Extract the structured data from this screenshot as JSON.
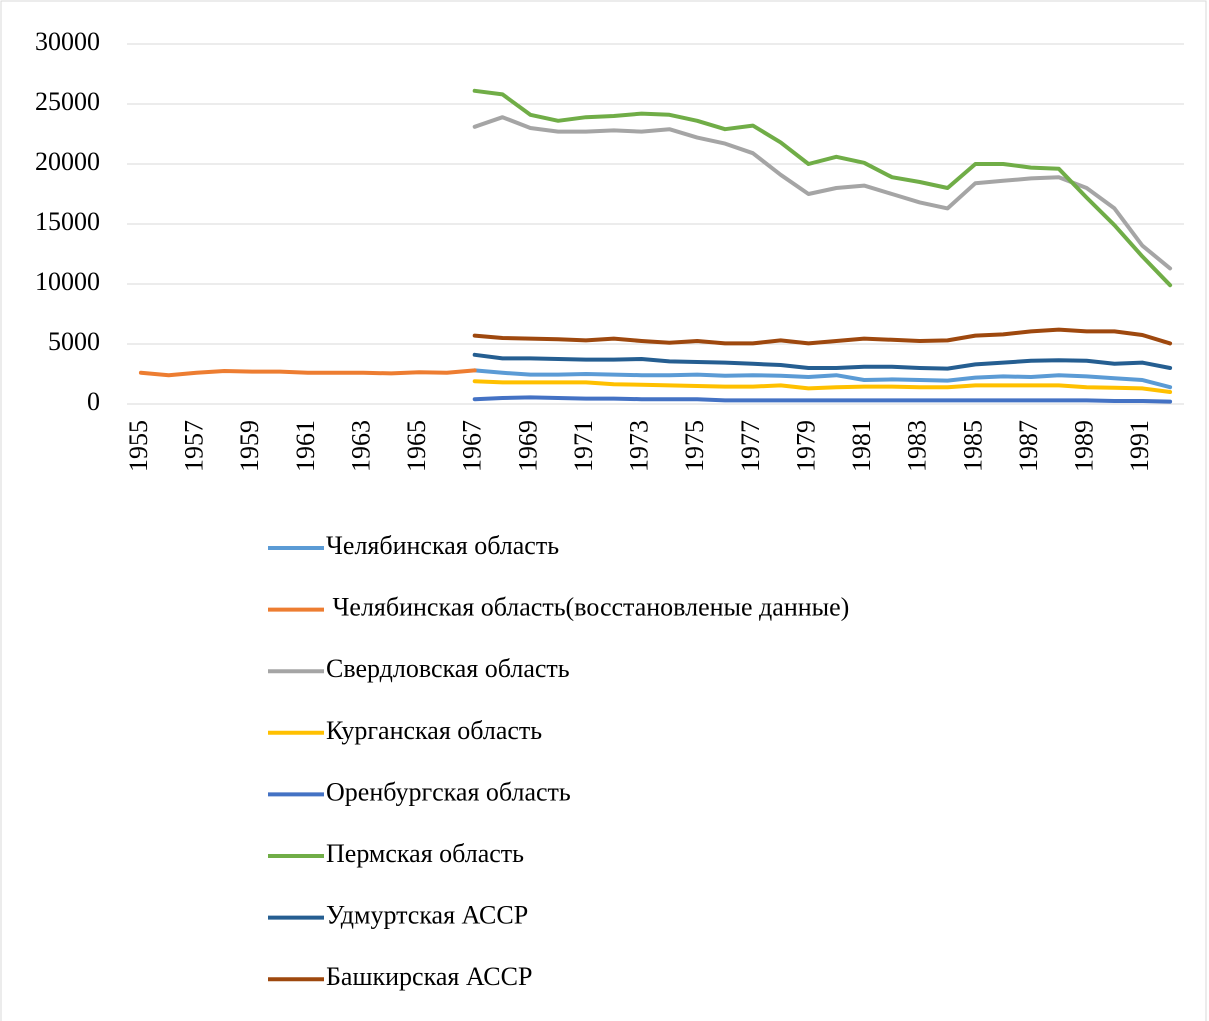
{
  "chart_data": {
    "type": "line",
    "categories": [
      "1955",
      null,
      "1957",
      null,
      "1959",
      null,
      "1961",
      null,
      "1963",
      null,
      "1965",
      null,
      "1967",
      null,
      "1969",
      null,
      "1971",
      null,
      "1973",
      null,
      "1975",
      null,
      "1977",
      null,
      "1979",
      null,
      "1981",
      null,
      "1983",
      null,
      "1985",
      null,
      "1987",
      null,
      "1989",
      null,
      "1991",
      null
    ],
    "series": [
      {
        "name": "Челябинская область",
        "color": "#5b9bd5",
        "values": [
          null,
          null,
          null,
          null,
          null,
          null,
          null,
          null,
          null,
          null,
          null,
          null,
          2800,
          2600,
          2450,
          2450,
          2500,
          2450,
          2400,
          2400,
          2450,
          2350,
          2400,
          2350,
          2250,
          2400,
          2000,
          2050,
          2000,
          1950,
          2200,
          2300,
          2250,
          2400,
          2300,
          2150,
          2000,
          1400
        ]
      },
      {
        "name": " Челябинская область(восстановленые данные)",
        "color": "#ed7d31",
        "values": [
          2600,
          2400,
          2600,
          2750,
          2700,
          2700,
          2600,
          2600,
          2600,
          2550,
          2650,
          2600,
          2800,
          null,
          null,
          null,
          null,
          null,
          null,
          null,
          null,
          null,
          null,
          null,
          null,
          null,
          null,
          null,
          null,
          null,
          null,
          null,
          null,
          null,
          null,
          null,
          null,
          null
        ]
      },
      {
        "name": "Свердловская область",
        "color": "#a5a5a5",
        "values": [
          null,
          null,
          null,
          null,
          null,
          null,
          null,
          null,
          null,
          null,
          null,
          null,
          23100,
          23900,
          23000,
          22700,
          22700,
          22800,
          22700,
          22900,
          22200,
          21700,
          20900,
          19100,
          17500,
          18000,
          18200,
          17500,
          16800,
          16300,
          18400,
          18600,
          18800,
          18900,
          18000,
          16300,
          13200,
          11300
        ]
      },
      {
        "name": "Курганская область",
        "color": "#ffc000",
        "values": [
          null,
          null,
          null,
          null,
          null,
          null,
          null,
          null,
          null,
          null,
          null,
          null,
          1900,
          1800,
          1800,
          1800,
          1800,
          1650,
          1600,
          1550,
          1500,
          1450,
          1450,
          1550,
          1300,
          1400,
          1450,
          1450,
          1400,
          1400,
          1550,
          1550,
          1550,
          1550,
          1400,
          1350,
          1300,
          1000
        ]
      },
      {
        "name": "Оренбургская область",
        "color": "#4472c4",
        "values": [
          null,
          null,
          null,
          null,
          null,
          null,
          null,
          null,
          null,
          null,
          null,
          null,
          400,
          500,
          550,
          500,
          450,
          450,
          400,
          400,
          400,
          300,
          300,
          300,
          300,
          300,
          300,
          300,
          300,
          300,
          300,
          300,
          300,
          300,
          300,
          250,
          250,
          200
        ]
      },
      {
        "name": "Пермская область",
        "color": "#70ad47",
        "values": [
          null,
          null,
          null,
          null,
          null,
          null,
          null,
          null,
          null,
          null,
          null,
          null,
          26100,
          25800,
          24100,
          23600,
          23900,
          24000,
          24200,
          24100,
          23600,
          22900,
          23200,
          21800,
          20000,
          20600,
          20100,
          18900,
          18500,
          18000,
          20000,
          20000,
          19700,
          19600,
          17200,
          14900,
          12300,
          9900
        ]
      },
      {
        "name": "Удмуртская АССР",
        "color": "#255e91",
        "values": [
          null,
          null,
          null,
          null,
          null,
          null,
          null,
          null,
          null,
          null,
          null,
          null,
          4100,
          3800,
          3800,
          3750,
          3700,
          3700,
          3750,
          3550,
          3500,
          3450,
          3350,
          3250,
          3000,
          3000,
          3100,
          3100,
          3000,
          2950,
          3300,
          3450,
          3600,
          3650,
          3600,
          3350,
          3450,
          3000
        ]
      },
      {
        "name": "Башкирская АССР",
        "color": "#9e480e",
        "values": [
          null,
          null,
          null,
          null,
          null,
          null,
          null,
          null,
          null,
          null,
          null,
          null,
          5700,
          5500,
          5450,
          5400,
          5300,
          5450,
          5250,
          5100,
          5250,
          5050,
          5050,
          5300,
          5050,
          5250,
          5450,
          5350,
          5250,
          5300,
          5700,
          5800,
          6050,
          6200,
          6050,
          6050,
          5750,
          5050
        ]
      }
    ],
    "ylim": [
      0,
      30000
    ],
    "yticks": [
      0,
      5000,
      10000,
      15000,
      20000,
      25000,
      30000
    ],
    "grid": true,
    "legend": "bottom"
  }
}
